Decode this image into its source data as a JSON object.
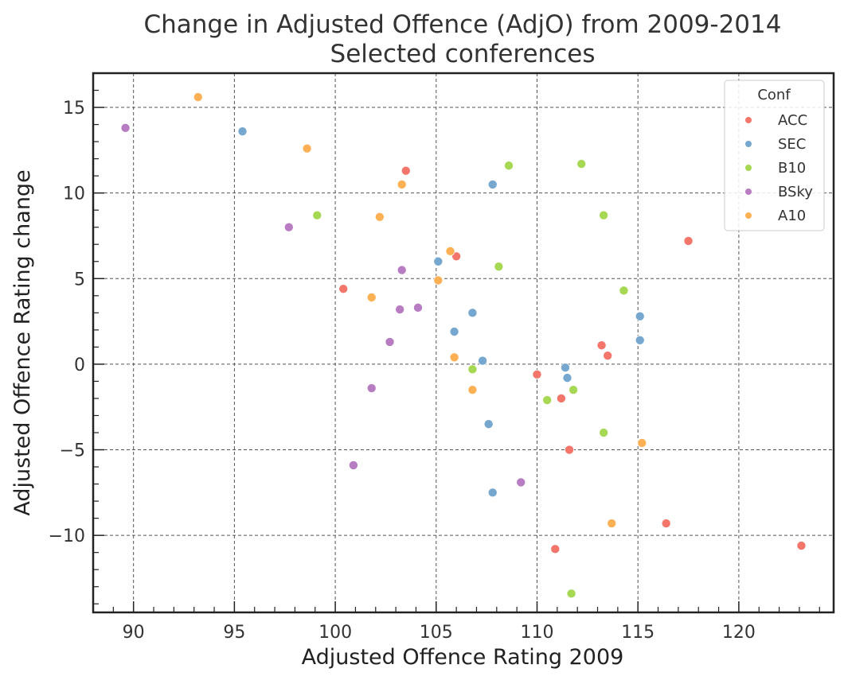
{
  "chart_data": {
    "type": "scatter",
    "title": "Change in Adjusted Offence (AdjO) from 2009-2014",
    "subtitle": "Selected conferences",
    "xlabel": "Adjusted Offence Rating 2009",
    "ylabel": "Adjusted Offence Rating change",
    "xlim": [
      88,
      124.7
    ],
    "ylim": [
      -14.5,
      17.0
    ],
    "xticks": [
      90,
      95,
      100,
      105,
      110,
      115,
      120
    ],
    "yticks": [
      -10,
      -5,
      0,
      5,
      10,
      15
    ],
    "xtick_labels": [
      "90",
      "95",
      "100",
      "105",
      "110",
      "115",
      "120"
    ],
    "ytick_labels": [
      "−10",
      "−5",
      "0",
      "5",
      "10",
      "15"
    ],
    "grid": true,
    "legend": {
      "title": "Conf",
      "position": "top-right"
    },
    "series": [
      {
        "name": "ACC",
        "color": "#f4766b",
        "points": [
          [
            103.5,
            11.3
          ],
          [
            106.0,
            6.3
          ],
          [
            100.4,
            4.4
          ],
          [
            117.5,
            7.2
          ],
          [
            113.2,
            1.1
          ],
          [
            113.5,
            0.5
          ],
          [
            110.0,
            -0.6
          ],
          [
            111.2,
            -2.0
          ],
          [
            111.6,
            -5.0
          ],
          [
            110.9,
            -10.8
          ],
          [
            116.4,
            -9.3
          ],
          [
            123.1,
            -10.6
          ]
        ]
      },
      {
        "name": "SEC",
        "color": "#76a7cf",
        "points": [
          [
            95.4,
            13.6
          ],
          [
            107.8,
            10.5
          ],
          [
            105.1,
            6.0
          ],
          [
            106.8,
            3.0
          ],
          [
            105.9,
            1.9
          ],
          [
            107.3,
            0.2
          ],
          [
            111.4,
            -0.2
          ],
          [
            111.5,
            -0.8
          ],
          [
            107.6,
            -3.5
          ],
          [
            107.8,
            -7.5
          ],
          [
            115.1,
            2.8
          ],
          [
            115.1,
            1.4
          ]
        ]
      },
      {
        "name": "B10",
        "color": "#a6d854",
        "points": [
          [
            99.1,
            8.7
          ],
          [
            108.6,
            11.6
          ],
          [
            112.2,
            11.7
          ],
          [
            113.3,
            8.7
          ],
          [
            108.1,
            5.7
          ],
          [
            114.3,
            4.3
          ],
          [
            106.8,
            -0.3
          ],
          [
            110.5,
            -2.1
          ],
          [
            111.8,
            -1.5
          ],
          [
            113.3,
            -4.0
          ],
          [
            111.7,
            -13.4
          ]
        ]
      },
      {
        "name": "BSky",
        "color": "#b77cc1",
        "points": [
          [
            89.6,
            13.8
          ],
          [
            97.7,
            8.0
          ],
          [
            103.3,
            5.5
          ],
          [
            103.2,
            3.2
          ],
          [
            104.1,
            3.3
          ],
          [
            102.7,
            1.3
          ],
          [
            101.8,
            -1.4
          ],
          [
            100.9,
            -5.9
          ],
          [
            109.2,
            -6.9
          ]
        ]
      },
      {
        "name": "A10",
        "color": "#fdb054",
        "points": [
          [
            93.2,
            15.6
          ],
          [
            98.6,
            12.6
          ],
          [
            103.3,
            10.5
          ],
          [
            102.2,
            8.6
          ],
          [
            105.7,
            6.6
          ],
          [
            105.1,
            4.9
          ],
          [
            101.8,
            3.9
          ],
          [
            105.9,
            0.4
          ],
          [
            106.8,
            -1.5
          ],
          [
            115.2,
            -4.6
          ],
          [
            113.7,
            -9.3
          ]
        ]
      }
    ]
  }
}
